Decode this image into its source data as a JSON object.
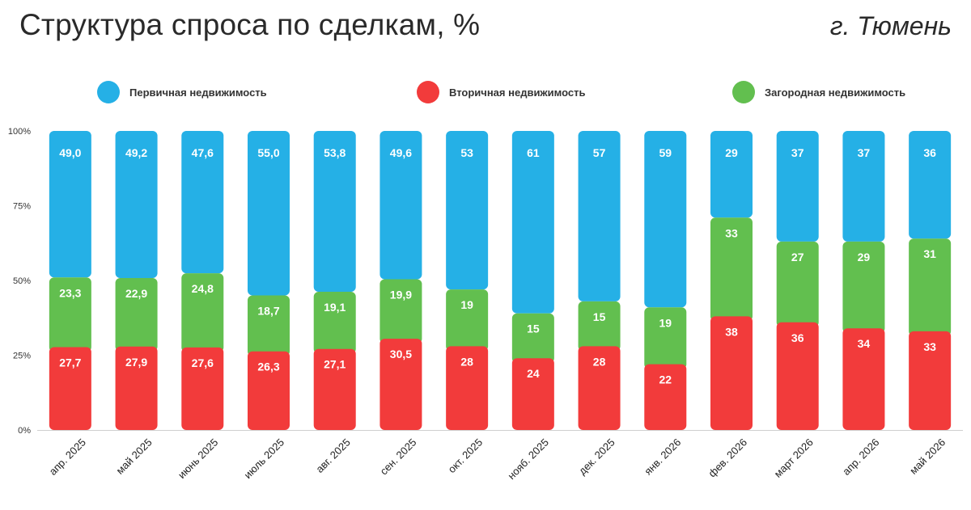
{
  "title": "Структура спроса по сделкам, %",
  "city": "г. Тюмень",
  "colors": {
    "primary": "#25B0E6",
    "secondary": "#F23B3B",
    "suburban": "#62BF4F"
  },
  "chart_data": {
    "type": "bar",
    "stacked": true,
    "normalized_percent": true,
    "categories": [
      "апр. 2025",
      "май 2025",
      "июнь 2025",
      "июль 2025",
      "авг. 2025",
      "сен. 2025",
      "окт. 2025",
      "нояб. 2025",
      "дек. 2025",
      "янв. 2026",
      "фев. 2026",
      "март 2026",
      "апр. 2026",
      "май 2026"
    ],
    "series": [
      {
        "name": "Вторичная недвижимость",
        "color": "#F23B3B",
        "values": [
          27.7,
          27.9,
          27.6,
          26.3,
          27.1,
          30.5,
          28,
          24,
          28,
          22,
          38,
          36,
          34,
          33
        ],
        "labels": [
          "27,7",
          "27,9",
          "27,6",
          "26,3",
          "27,1",
          "30,5",
          "28",
          "24",
          "28",
          "22",
          "38",
          "36",
          "34",
          "33"
        ]
      },
      {
        "name": "Загородная недвижимость",
        "color": "#62BF4F",
        "values": [
          23.3,
          22.9,
          24.8,
          18.7,
          19.1,
          19.9,
          19,
          15,
          15,
          19,
          33,
          27,
          29,
          31
        ],
        "labels": [
          "23,3",
          "22,9",
          "24,8",
          "18,7",
          "19,1",
          "19,9",
          "19",
          "15",
          "15",
          "19",
          "33",
          "27",
          "29",
          "31"
        ]
      },
      {
        "name": "Первичная недвижимость",
        "color": "#25B0E6",
        "values": [
          49.0,
          49.2,
          47.6,
          55.0,
          53.8,
          49.6,
          53,
          61,
          57,
          59,
          29,
          37,
          37,
          36
        ],
        "labels": [
          "49,0",
          "49,2",
          "47,6",
          "55,0",
          "53,8",
          "49,6",
          "53",
          "61",
          "57",
          "59",
          "29",
          "37",
          "37",
          "36"
        ]
      }
    ],
    "legend": [
      "Первичная недвижимость",
      "Вторичная недвижимость",
      "Загородная недвижимость"
    ],
    "legend_position": "top",
    "yticks": [
      "0%",
      "25%",
      "50%",
      "75%",
      "100%"
    ],
    "ylim": [
      0,
      100
    ],
    "grid": false
  }
}
